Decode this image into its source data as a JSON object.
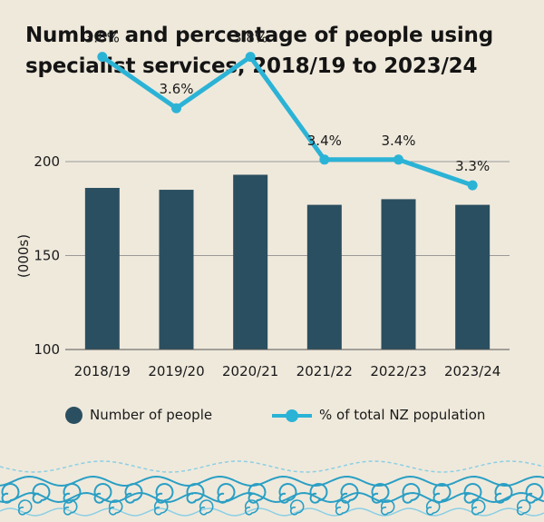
{
  "title_lines": [
    "Number and percentage of people using",
    "specialist services, 2018/19 to 2023/24"
  ],
  "colors": {
    "bar": "#2a4f60",
    "line": "#2bb3d6",
    "background": "#efe9dc",
    "grid": "#9a9a9a",
    "wave_dark": "#2a9fc4",
    "wave_light": "#8ccfe3"
  },
  "chart_data": {
    "type": "bar",
    "title": "Number and percentage of people using specialist services, 2018/19 to 2023/24",
    "categories": [
      "2018/19",
      "2019/20",
      "2020/21",
      "2021/22",
      "2022/23",
      "2023/24"
    ],
    "ylabel": "(000s)",
    "ylim": [
      100,
      200
    ],
    "yticks": [
      "100",
      "150",
      "200"
    ],
    "series": [
      {
        "name": "Number of people",
        "kind": "bar",
        "values": [
          186,
          185,
          193,
          177,
          180,
          177
        ]
      },
      {
        "name": "% of total NZ population",
        "kind": "line",
        "values": [
          3.8,
          3.6,
          3.8,
          3.4,
          3.4,
          3.3
        ],
        "labels": [
          "3.8%",
          "3.6%",
          "3.8%",
          "3.4%",
          "3.4%",
          "3.3%"
        ]
      }
    ],
    "grid": true,
    "legend_position": "bottom"
  },
  "legend": {
    "bar_label": "Number of people",
    "line_label": "% of total NZ population"
  }
}
